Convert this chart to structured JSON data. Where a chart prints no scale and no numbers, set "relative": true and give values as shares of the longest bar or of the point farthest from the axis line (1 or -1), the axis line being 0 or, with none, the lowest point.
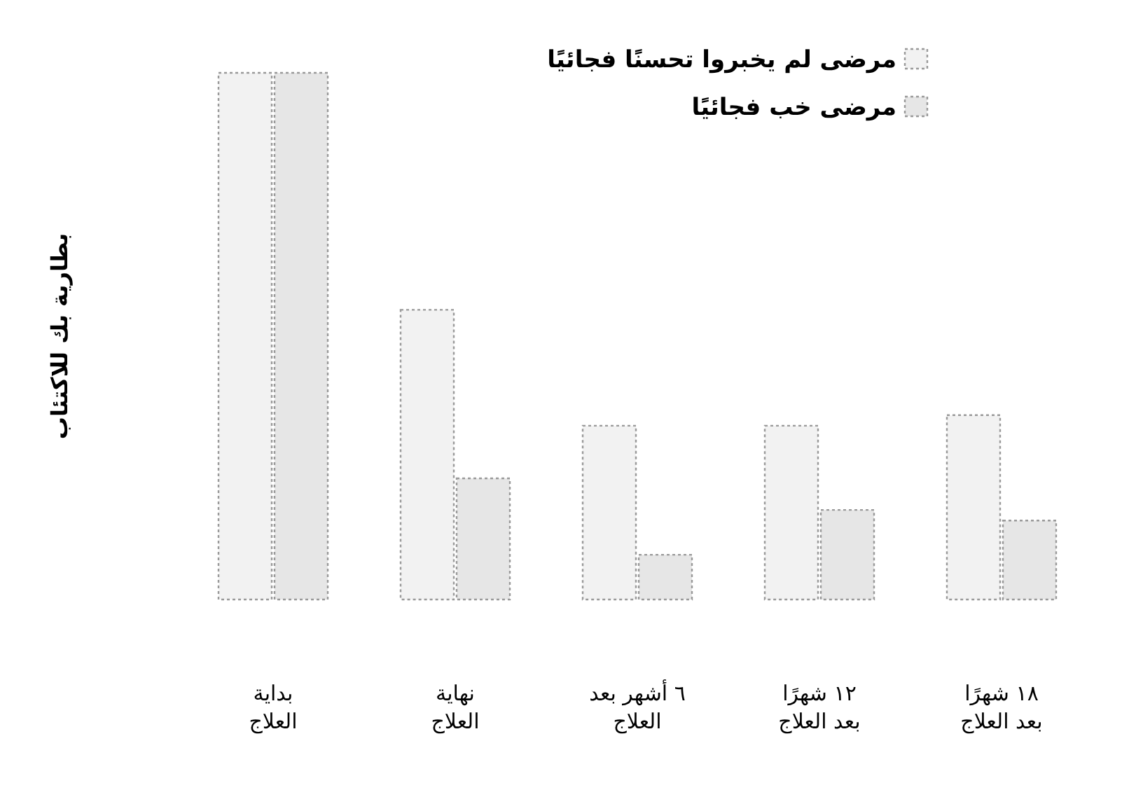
{
  "chart_data": {
    "type": "bar",
    "relative": true,
    "ylabel": "بطارية بك للاكتئاب",
    "categories": [
      "بداية\nالعلاج",
      "نهاية\nالعلاج",
      "٦ أشهر بعد\nالعلاج",
      "١٢ شهرًا\nبعد العلاج",
      "١٨ شهرًا\nبعد العلاج"
    ],
    "series": [
      {
        "name": "مرضى لم يخبروا تحسنًا فجائيًا",
        "color": "#f2f2f2",
        "values": [
          1,
          0.55,
          0.33,
          0.33,
          0.35
        ]
      },
      {
        "name": "مرضى خب فجائيًا",
        "color": "#e6e6e6",
        "values": [
          1,
          0.23,
          0.085,
          0.17,
          0.15
        ]
      }
    ],
    "legend": "top right"
  }
}
